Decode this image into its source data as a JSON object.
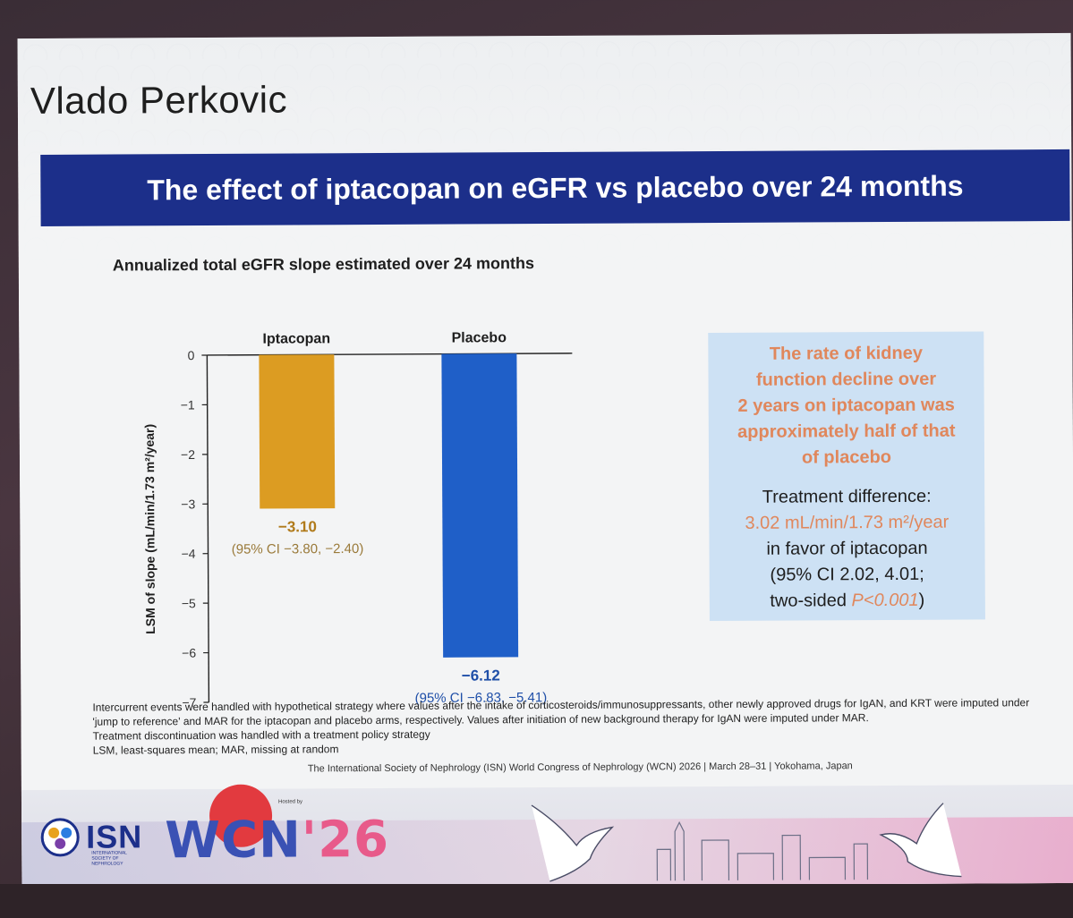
{
  "speaker": "Vlado Perkovic",
  "banner_title": "The effect of iptacopan on eGFR vs placebo over 24 months",
  "chart_data": {
    "type": "bar",
    "title": "Annualized total eGFR slope estimated over 24 months",
    "ylabel": "LSM of slope (mL/min/1.73 m²/year)",
    "ylim": [
      -7,
      0
    ],
    "yticks": [
      "0",
      "−1",
      "−2",
      "−3",
      "−4",
      "−5",
      "−6",
      "−7"
    ],
    "ytick_values": [
      0,
      -1,
      -2,
      -3,
      -4,
      -5,
      -6,
      -7
    ],
    "categories": [
      "Iptacopan",
      "Placebo"
    ],
    "values": [
      -3.1,
      -6.12
    ],
    "colors": [
      "#dc9c22",
      "#1f5fc8"
    ],
    "value_labels": [
      "−3.10",
      "−6.12"
    ],
    "ci_labels": [
      "(95% CI −3.80, −2.40)",
      "(95% CI −6.83, −5.41)"
    ],
    "grid": false
  },
  "callout": {
    "main_lines": [
      "The rate of kidney",
      "function decline over",
      "2 years on iptacopan was",
      "approximately half of that",
      "of placebo"
    ],
    "td_label": "Treatment difference:",
    "td_value": "3.02 mL/min/1.73 m²/year",
    "td_favor": "in favor of iptacopan",
    "td_ci": "(95% CI 2.02, 4.01;",
    "td_p_prefix": "two-sided ",
    "td_p": "P<0.001",
    "td_p_suffix": ")"
  },
  "footnotes": [
    "Intercurrent events were handled with hypothetical strategy where values after the intake of corticosteroids/immunosuppressants, other newly approved drugs for IgAN, and KRT were imputed under 'jump to reference' and MAR for the iptacopan and placebo arms, respectively. Values after initiation of new background therapy for IgAN were imputed under MAR.",
    "Treatment discontinuation was handled with a treatment policy strategy",
    "LSM, least-squares mean; MAR, missing at random"
  ],
  "conference_line": "The International Society of Nephrology (ISN) World Congress of Nephrology (WCN) 2026 | March 28–31 | Yokohama, Japan",
  "footer": {
    "isn_logo": "ISN",
    "isn_subtext": "INTERNATIONAL SOCIETY OF NEPHROLOGY",
    "wcn_text": "WCN",
    "wcn_year": "'26",
    "hosted_by": "Hosted by"
  }
}
